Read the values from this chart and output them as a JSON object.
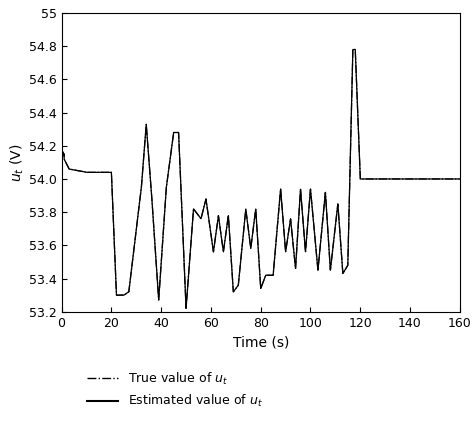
{
  "title": "",
  "xlabel": "Time (s)",
  "ylabel": "$u_t$ (V)",
  "xlim": [
    0,
    160
  ],
  "ylim": [
    53.2,
    55
  ],
  "xticks": [
    0,
    20,
    40,
    60,
    80,
    100,
    120,
    140,
    160
  ],
  "yticks": [
    53.2,
    53.4,
    53.6,
    53.8,
    54.0,
    54.2,
    54.4,
    54.6,
    54.8,
    55.0
  ],
  "legend_true": "True value of $u_t$",
  "legend_estimated": "Estimated value of $u_t$",
  "background_color": "#ffffff",
  "line_color": "#000000"
}
